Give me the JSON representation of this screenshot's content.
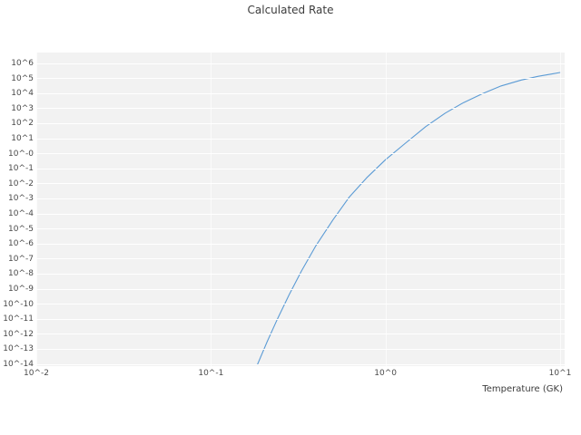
{
  "colors": {
    "plot_background": "#f2f2f2",
    "grid": "#ffffff",
    "line": "#5b9bd5",
    "text": "#3c3c3c",
    "tick_text": "#4a4a4a"
  },
  "chart_data": {
    "type": "line",
    "title": "Calculated Rate",
    "xlabel": "Temperature (GK)",
    "ylabel": "",
    "x_scale": "log",
    "y_scale": "log",
    "xlim_log10": [
      -2,
      1
    ],
    "ylim_log10": [
      -14,
      6
    ],
    "grid": true,
    "legend": "none",
    "x_ticks": [
      {
        "log10": -2,
        "label": "10^-2"
      },
      {
        "log10": -1,
        "label": "10^-1"
      },
      {
        "log10": 0,
        "label": "10^0"
      },
      {
        "log10": 1,
        "label": "10^1"
      }
    ],
    "y_ticks": [
      {
        "log10": 6,
        "label": "10^6"
      },
      {
        "log10": 5,
        "label": "10^5"
      },
      {
        "log10": 4,
        "label": "10^4"
      },
      {
        "log10": 3,
        "label": "10^3"
      },
      {
        "log10": 2,
        "label": "10^2"
      },
      {
        "log10": 1,
        "label": "10^1"
      },
      {
        "log10": 0,
        "label": "10^-0"
      },
      {
        "log10": -1,
        "label": "10^-1"
      },
      {
        "log10": -2,
        "label": "10^-2"
      },
      {
        "log10": -3,
        "label": "10^-3"
      },
      {
        "log10": -4,
        "label": "10^-4"
      },
      {
        "log10": -5,
        "label": "10^-5"
      },
      {
        "log10": -6,
        "label": "10^-6"
      },
      {
        "log10": -7,
        "label": "10^-7"
      },
      {
        "log10": -8,
        "label": "10^-8"
      },
      {
        "log10": -9,
        "label": "10^-9"
      },
      {
        "log10": -10,
        "label": "10^-10"
      },
      {
        "log10": -11,
        "label": "10^-11"
      },
      {
        "log10": -12,
        "label": "10^-12"
      },
      {
        "log10": -13,
        "label": "10^-13"
      },
      {
        "log10": -14,
        "label": "10^-14"
      }
    ],
    "series": [
      {
        "name": "calculated-rate",
        "color": "#5b9bd5",
        "points": [
          {
            "T": 0.185,
            "rate": 1e-14
          },
          {
            "T": 0.21,
            "rate": 3.2e-13
          },
          {
            "T": 0.24,
            "rate": 1e-11
          },
          {
            "T": 0.28,
            "rate": 4e-10
          },
          {
            "T": 0.33,
            "rate": 1.6e-08
          },
          {
            "T": 0.4,
            "rate": 7.9e-07
          },
          {
            "T": 0.5,
            "rate": 4e-05
          },
          {
            "T": 0.62,
            "rate": 0.0013
          },
          {
            "T": 0.78,
            "rate": 0.025
          },
          {
            "T": 1.0,
            "rate": 0.4
          },
          {
            "T": 1.3,
            "rate": 5.0
          },
          {
            "T": 1.7,
            "rate": 63.0
          },
          {
            "T": 2.2,
            "rate": 500.0
          },
          {
            "T": 2.8,
            "rate": 2500.0
          },
          {
            "T": 3.6,
            "rate": 10000.0
          },
          {
            "T": 4.6,
            "rate": 32000.0
          },
          {
            "T": 6.0,
            "rate": 79000.0
          },
          {
            "T": 7.5,
            "rate": 140000.0
          },
          {
            "T": 9.0,
            "rate": 200000.0
          },
          {
            "T": 10.0,
            "rate": 250000.0
          }
        ]
      }
    ]
  }
}
